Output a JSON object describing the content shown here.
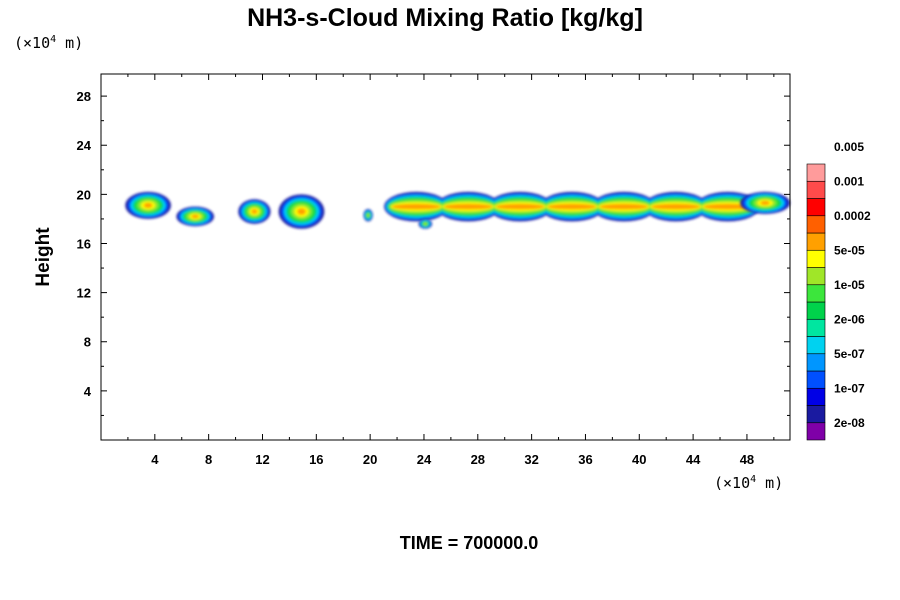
{
  "chart_data": {
    "type": "heatmap",
    "title": "NH3-s-Cloud Mixing Ratio [kg/kg]",
    "xlabel": "",
    "ylabel": "Height",
    "x_unit": {
      "prefix": "(×10",
      "exp": "4",
      "suffix": " m)"
    },
    "y_unit": {
      "prefix": "(×10",
      "exp": "4",
      "suffix": " m)"
    },
    "xlim": [
      0,
      51.2
    ],
    "ylim": [
      0,
      29.8
    ],
    "x_ticks": [
      4,
      8,
      12,
      16,
      20,
      24,
      28,
      32,
      36,
      40,
      44,
      48
    ],
    "y_ticks": [
      4,
      8,
      12,
      16,
      20,
      24,
      28
    ],
    "grid": false,
    "legend": {
      "placement": "right",
      "colors": [
        "#7f00a8",
        "#1a1aa0",
        "#0000e6",
        "#0050ff",
        "#0096ff",
        "#00d2f0",
        "#00e6a0",
        "#00d24b",
        "#3ce63c",
        "#a0e628",
        "#ffff00",
        "#ffa000",
        "#ff6000",
        "#ff0000",
        "#ff4b4b",
        "#ff9b9b"
      ],
      "labels": [
        "2e-08",
        "1e-07",
        "5e-07",
        "2e-06",
        "1e-05",
        "5e-05",
        "0.0002",
        "0.001",
        "0.005"
      ]
    },
    "cloud_regions": [
      {
        "x": [
          1.8,
          5.2
        ],
        "y": [
          18.0,
          20.2
        ],
        "peak": "5e-05"
      },
      {
        "x": [
          5.6,
          8.4
        ],
        "y": [
          17.4,
          19.0
        ],
        "peak": "0.0002"
      },
      {
        "x": [
          10.2,
          12.6
        ],
        "y": [
          17.6,
          19.6
        ],
        "peak": "5e-05"
      },
      {
        "x": [
          13.2,
          16.6
        ],
        "y": [
          17.2,
          20.0
        ],
        "peak": "0.0002"
      },
      {
        "x": [
          19.5,
          20.2
        ],
        "y": [
          17.8,
          18.8
        ],
        "peak": "1e-05"
      },
      {
        "x": [
          21.5,
          48.5
        ],
        "y": [
          17.8,
          20.2
        ],
        "peak": "5e-05"
      },
      {
        "x": [
          23.6,
          24.6
        ],
        "y": [
          17.2,
          18.0
        ],
        "peak": "1e-05"
      },
      {
        "x": [
          47.5,
          51.2
        ],
        "y": [
          18.4,
          20.2
        ],
        "peak": "5e-05"
      }
    ]
  },
  "footer": {
    "time_label": "TIME = 700000.0"
  }
}
